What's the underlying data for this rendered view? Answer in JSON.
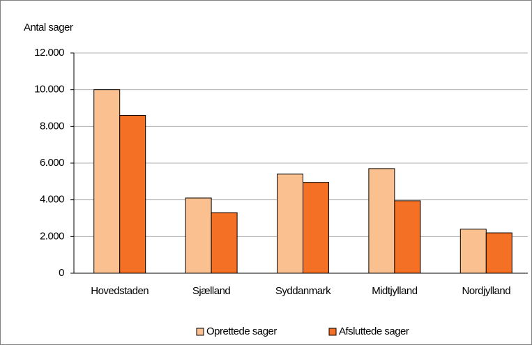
{
  "chart_data": {
    "type": "bar",
    "y_axis_label": "Antal sager",
    "categories": [
      "Hovedstaden",
      "Sjælland",
      "Syddanmark",
      "Midtjylland",
      "Nordjylland"
    ],
    "series": [
      {
        "name": "Oprettede sager",
        "color": "#fac090",
        "values": [
          10000,
          4100,
          5400,
          5700,
          2400
        ]
      },
      {
        "name": "Afsluttede sager",
        "color": "#f47024",
        "values": [
          8600,
          3300,
          4950,
          3950,
          2200
        ]
      }
    ],
    "ylim": [
      0,
      12000
    ],
    "yticks": [
      0,
      {
        "value": 2000,
        "label": "2.000"
      },
      {
        "value": 4000,
        "label": "4.000"
      },
      {
        "value": 6000,
        "label": "6.000"
      },
      {
        "value": 8000,
        "label": "8.000"
      },
      {
        "value": 10000,
        "label": "10.000"
      },
      {
        "value": 12000,
        "label": "12.000"
      }
    ],
    "grid": true,
    "legend": "bottom"
  }
}
